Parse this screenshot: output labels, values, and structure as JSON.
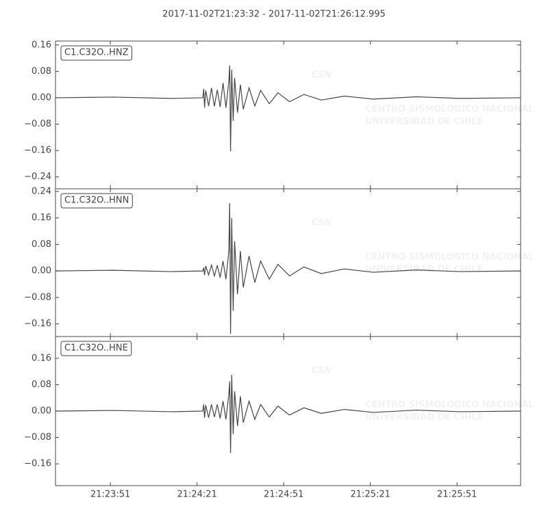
{
  "title": "2017-11-02T21:23:32  -  2017-11-02T21:26:12.995",
  "watermark": {
    "logo": "CSN",
    "line1": "CENTRO SISMOLOGICO NACIONAL",
    "line2": "UNIVERSIDAD DE CHILE"
  },
  "chart_data": [
    {
      "type": "line",
      "x": [
        0,
        20,
        40,
        51,
        51.3,
        51.6,
        52,
        53,
        54,
        55,
        56,
        57,
        58,
        59,
        60,
        60.3,
        60.6,
        61,
        61.5,
        62,
        63,
        64,
        65,
        67,
        69,
        71,
        74,
        77,
        81,
        86,
        92,
        100,
        110,
        125,
        140,
        161
      ],
      "xlim": [
        0,
        160.995
      ],
      "ylim": [
        -0.276,
        0.172
      ],
      "yticks": [
        {
          "value": 0.16,
          "label": "0.16"
        },
        {
          "value": 0.08,
          "label": "0.08"
        },
        {
          "value": 0,
          "label": "0.00"
        },
        {
          "value": -0.08,
          "label": "−0.08"
        },
        {
          "value": -0.16,
          "label": "−0.16"
        },
        {
          "value": -0.24,
          "label": "−0.24"
        }
      ],
      "series": [
        {
          "name": "C1.C32O..HNZ",
          "color": "#444444",
          "values": [
            0,
            0.002,
            -0.002,
            0,
            0.027,
            -0.03,
            0.022,
            -0.025,
            0.03,
            -0.026,
            0.024,
            -0.028,
            0.045,
            -0.03,
            0.05,
            0.098,
            -0.162,
            0.085,
            -0.07,
            0.06,
            -0.045,
            0.04,
            -0.035,
            0.03,
            -0.025,
            0.022,
            -0.018,
            0.015,
            -0.012,
            0.01,
            -0.007,
            0.005,
            -0.004,
            0.003,
            -0.002,
            0
          ]
        }
      ]
    },
    {
      "type": "line",
      "x": [
        0,
        20,
        40,
        51,
        51.3,
        51.6,
        52,
        53,
        54,
        55,
        56,
        57,
        58,
        59,
        60,
        60.3,
        60.6,
        61,
        61.5,
        62,
        63,
        64,
        65,
        67,
        69,
        71,
        74,
        77,
        81,
        86,
        92,
        100,
        110,
        125,
        140,
        161
      ],
      "xlim": [
        0,
        160.995
      ],
      "ylim": [
        -0.198,
        0.248
      ],
      "yticks": [
        {
          "value": 0.24,
          "label": "0.24"
        },
        {
          "value": 0.16,
          "label": "0.16"
        },
        {
          "value": 0.08,
          "label": "0.08"
        },
        {
          "value": 0,
          "label": "0.00"
        },
        {
          "value": -0.08,
          "label": "−0.08"
        },
        {
          "value": -0.16,
          "label": "−0.16"
        }
      ],
      "series": [
        {
          "name": "C1.C32O..HNN",
          "color": "#444444",
          "values": [
            0,
            0.002,
            -0.002,
            0,
            0.01,
            -0.012,
            0.015,
            -0.012,
            0.018,
            -0.015,
            0.017,
            -0.02,
            0.03,
            -0.025,
            0.06,
            0.205,
            -0.19,
            0.16,
            -0.12,
            0.09,
            -0.07,
            0.06,
            -0.05,
            0.045,
            -0.035,
            0.03,
            -0.025,
            0.02,
            -0.015,
            0.012,
            -0.008,
            0.006,
            -0.004,
            0.003,
            -0.002,
            0
          ]
        }
      ]
    },
    {
      "type": "line",
      "x": [
        0,
        20,
        40,
        51,
        51.3,
        51.6,
        52,
        53,
        54,
        55,
        56,
        57,
        58,
        59,
        60,
        60.3,
        60.6,
        61,
        61.5,
        62,
        63,
        64,
        65,
        67,
        69,
        71,
        74,
        77,
        81,
        86,
        92,
        100,
        110,
        125,
        140,
        161
      ],
      "xlim": [
        0,
        160.995
      ],
      "ylim": [
        -0.226,
        0.226
      ],
      "xticks": [
        {
          "value": 19,
          "label": "21:23:51"
        },
        {
          "value": 49,
          "label": "21:24:21"
        },
        {
          "value": 79,
          "label": "21:24:51"
        },
        {
          "value": 109,
          "label": "21:25:21"
        },
        {
          "value": 139,
          "label": "21:25:51"
        }
      ],
      "yticks": [
        {
          "value": 0.16,
          "label": "0.16"
        },
        {
          "value": 0.08,
          "label": "0.08"
        },
        {
          "value": 0,
          "label": "0.00"
        },
        {
          "value": -0.08,
          "label": "−0.08"
        },
        {
          "value": -0.16,
          "label": "−0.16"
        }
      ],
      "series": [
        {
          "name": "C1.C32O..HNE",
          "color": "#444444",
          "values": [
            0,
            0.002,
            -0.002,
            0,
            0.02,
            -0.02,
            0.018,
            -0.02,
            0.02,
            -0.018,
            0.02,
            -0.022,
            0.03,
            -0.025,
            0.05,
            0.09,
            -0.127,
            0.11,
            -0.07,
            0.06,
            -0.045,
            0.045,
            -0.035,
            0.03,
            -0.025,
            0.02,
            -0.018,
            0.015,
            -0.012,
            0.01,
            -0.007,
            0.005,
            -0.004,
            0.003,
            -0.002,
            0
          ]
        }
      ]
    }
  ]
}
